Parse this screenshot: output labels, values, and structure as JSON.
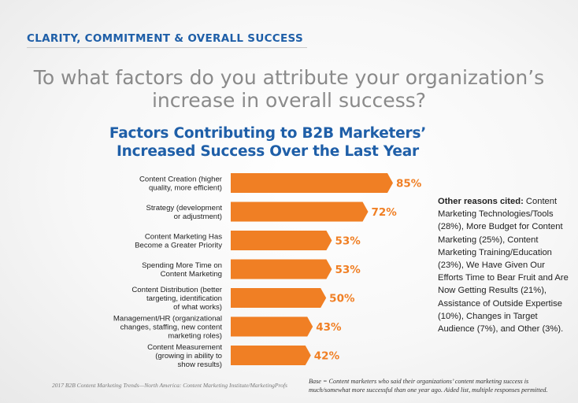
{
  "header": {
    "section_title": "CLARITY, COMMITMENT & OVERALL SUCCESS",
    "question": "To what factors do you attribute your organization’s increase in overall success?"
  },
  "colors": {
    "bar": "#f07f24",
    "title_blue": "#1f5fa8",
    "value_text": "#f07f24"
  },
  "chart_data": {
    "type": "bar",
    "orientation": "horizontal",
    "title": "Factors Contributing to B2B Marketers’ Increased Success Over the Last Year",
    "xlim": [
      0,
      100
    ],
    "categories": [
      [
        "Content Creation (higher",
        "quality, more efficient)"
      ],
      [
        "Strategy (development",
        "or adjustment)"
      ],
      [
        "Content Marketing Has",
        "Become a Greater Priority"
      ],
      [
        "Spending More Time on",
        "Content Marketing"
      ],
      [
        "Content Distribution (better",
        "targeting, identification",
        "of what works)"
      ],
      [
        "Management/HR (organizational",
        "changes, staffing, new content",
        "marketing roles)"
      ],
      [
        "Content Measurement",
        "(growing in ability to",
        "show results)"
      ]
    ],
    "values": [
      85,
      72,
      53,
      53,
      50,
      43,
      42
    ],
    "value_labels": [
      "85%",
      "72%",
      "53%",
      "53%",
      "50%",
      "43%",
      "42%"
    ]
  },
  "notes": {
    "other_heading": "Other reasons cited:",
    "other_text": "Content Marketing Technologies/Tools (28%), More Budget for Content Marketing (25%), Content Marketing Training/Education (23%), We Have Given Our Efforts Time to Bear Fruit and Are Now Getting Results (21%), Assistance of Outside Expertise (10%), Changes in Target Audience (7%), and Other (3%).",
    "source": "2017 B2B Content Marketing Trends—North America: Content Marketing Institute/MarketingProfs",
    "base": "Base = Content marketers who said their organizations’ content marketing success is much/somewhat more successful than one year ago. Aided list, multiple responses permitted."
  }
}
